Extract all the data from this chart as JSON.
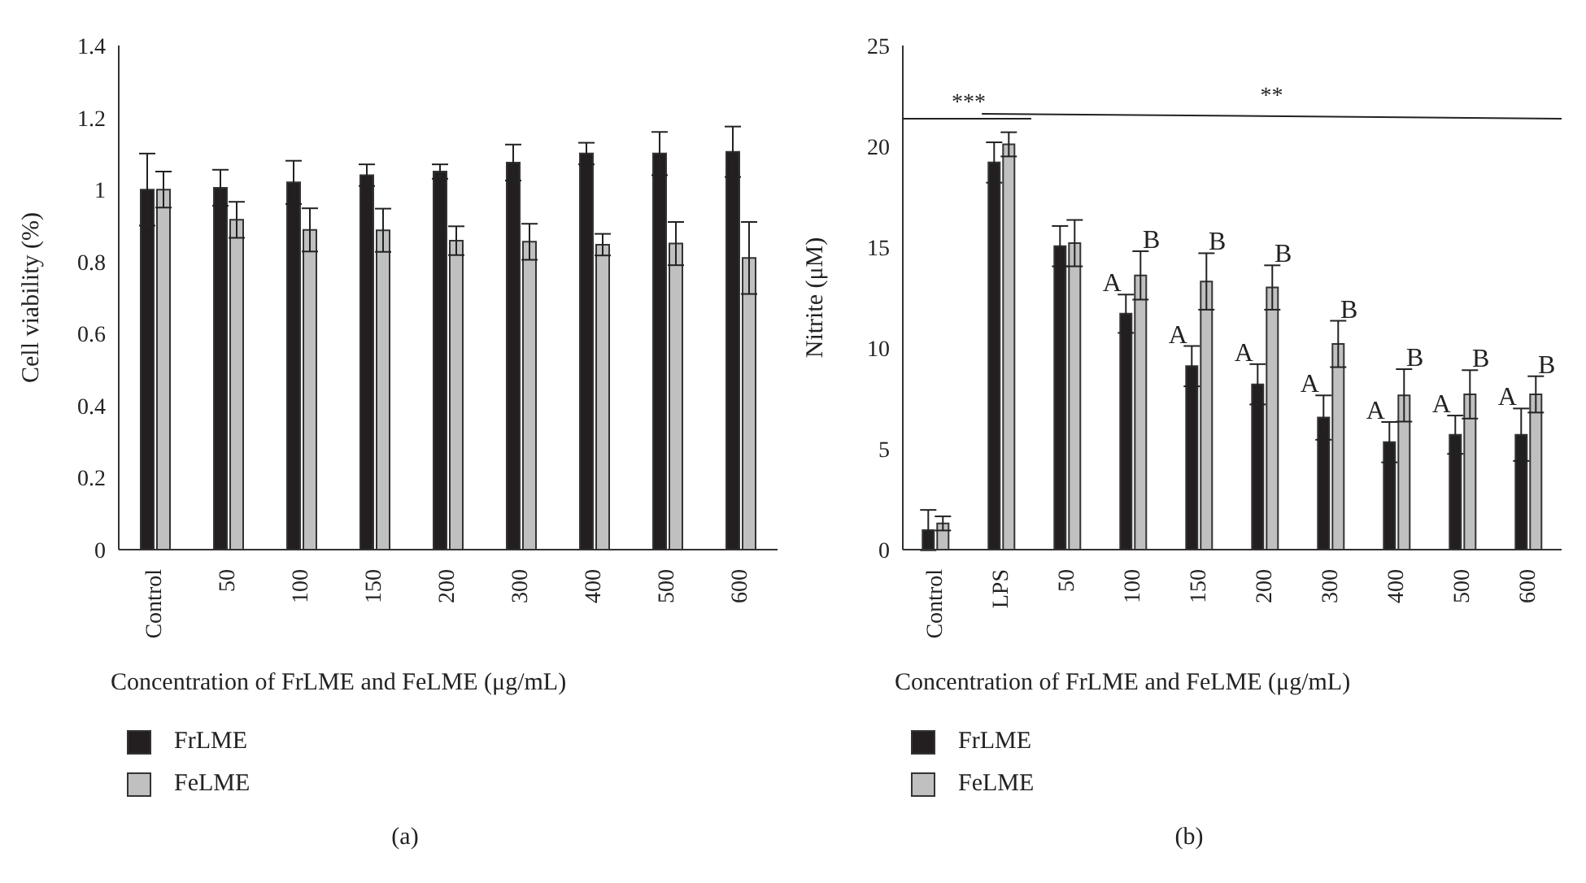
{
  "chart_data": [
    {
      "type": "bar",
      "ylabel": "Cell viability (%)",
      "xlabel": "Concentration of FrLME and FeLME (μg/mL)",
      "categories": [
        "Control",
        "50",
        "100",
        "150",
        "200",
        "300",
        "400",
        "500",
        "600"
      ],
      "series": [
        {
          "name": "FrLME",
          "color": "#231f20",
          "values": [
            1.0,
            1.005,
            1.02,
            1.04,
            1.05,
            1.075,
            1.1,
            1.1,
            1.105
          ],
          "errors": [
            0.1,
            0.05,
            0.06,
            0.03,
            0.02,
            0.05,
            0.03,
            0.06,
            0.07
          ]
        },
        {
          "name": "FeLME",
          "color": "#c0c0c0",
          "values": [
            1.0,
            0.916,
            0.888,
            0.887,
            0.858,
            0.855,
            0.847,
            0.85,
            0.81
          ],
          "errors": [
            0.05,
            0.05,
            0.06,
            0.06,
            0.04,
            0.05,
            0.03,
            0.06,
            0.1
          ]
        }
      ],
      "ylim": [
        0,
        1.4
      ],
      "yticks": [
        0,
        0.2,
        0.4,
        0.6,
        0.8,
        1,
        1.2,
        1.4
      ],
      "grid": false,
      "legend": "bottom left",
      "annotations": [
        "(a)"
      ]
    },
    {
      "type": "bar",
      "ylabel": "Nitrite (μM)",
      "xlabel": "Concentration of FrLME and FeLME (μg/mL)",
      "categories": [
        "Control",
        "LPS",
        "50",
        "100",
        "150",
        "200",
        "300",
        "400",
        "500",
        "600"
      ],
      "series": [
        {
          "name": "FrLME",
          "color": "#231f20",
          "values": [
            0.97,
            19.2,
            15.05,
            11.7,
            9.1,
            8.2,
            6.55,
            5.33,
            5.7,
            5.7
          ],
          "errors": [
            1.0,
            1.0,
            1.0,
            0.95,
            1.0,
            1.0,
            1.1,
            1.0,
            0.95,
            1.3
          ]
        },
        {
          "name": "FeLME",
          "color": "#c0c0c0",
          "values": [
            1.3,
            20.1,
            15.2,
            13.6,
            13.3,
            13.0,
            10.2,
            7.65,
            7.7,
            7.7
          ],
          "errors": [
            0.35,
            0.6,
            1.15,
            1.2,
            1.4,
            1.1,
            1.15,
            1.3,
            1.2,
            0.9
          ]
        }
      ],
      "ylim": [
        0,
        25
      ],
      "yticks": [
        0,
        5,
        10,
        15,
        20,
        25
      ],
      "grid": false,
      "legend": "bottom left",
      "annotations": [
        "***",
        "**",
        {
          "text": "A",
          "x": "100",
          "y": 12.65
        },
        {
          "text": "B",
          "x": "100",
          "y": 14.8
        },
        {
          "text": "A",
          "x": "150",
          "y": 10.1
        },
        {
          "text": "B",
          "x": "150",
          "y": 14.7
        },
        {
          "text": "A",
          "x": "200",
          "y": 9.2
        },
        {
          "text": "B",
          "x": "200",
          "y": 14.1
        },
        {
          "text": "A",
          "x": "300",
          "y": 7.65
        },
        {
          "text": "B",
          "x": "300",
          "y": 11.35
        },
        {
          "text": "A",
          "x": "400",
          "y": 6.33
        },
        {
          "text": "B",
          "x": "400",
          "y": 8.95
        },
        {
          "text": "A",
          "x": "500",
          "y": 6.65
        },
        {
          "text": "B",
          "x": "500",
          "y": 8.9
        },
        {
          "text": "A",
          "x": "600",
          "y": 7.0
        },
        {
          "text": "B",
          "x": "600",
          "y": 8.6
        },
        "(b)"
      ]
    }
  ]
}
